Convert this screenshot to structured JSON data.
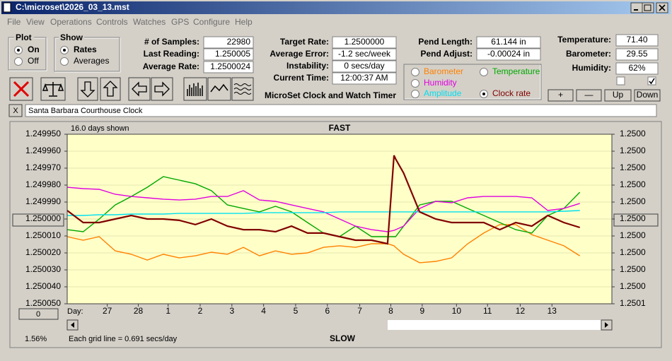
{
  "window": {
    "title": "C:\\microset\\2026_03_13.mst"
  },
  "menu": [
    "File",
    "View",
    "Operations",
    "Controls",
    "Watches",
    "GPS",
    "Configure",
    "Help"
  ],
  "plot_group": {
    "title": "Plot",
    "options": [
      "On",
      "Off"
    ],
    "selected": 0
  },
  "show_group": {
    "title": "Show",
    "options": [
      "Rates",
      "Averages"
    ],
    "selected": 0
  },
  "stats": {
    "left": [
      {
        "label": "# of Samples:",
        "value": "22980"
      },
      {
        "label": "Last Reading:",
        "value": "1.250005"
      },
      {
        "label": "Average Rate:",
        "value": "1.2500024"
      }
    ],
    "middle": [
      {
        "label": "Target Rate:",
        "value": "1.2500000"
      },
      {
        "label": "Average Error:",
        "value": "-1.2 sec/week"
      },
      {
        "label": "Instability:",
        "value": "0 secs/day"
      },
      {
        "label": "Current Time:",
        "value": "12:00:37 AM"
      }
    ],
    "pend": [
      {
        "label": "Pend Length:",
        "value": "61.144 in"
      },
      {
        "label": "Pend Adjust:",
        "value": "-0.00024 in"
      }
    ],
    "environment": [
      {
        "label": "Temperature:",
        "value": "71.40"
      },
      {
        "label": "Barometer:",
        "value": "29.55"
      },
      {
        "label": "Humidity:",
        "value": "62%"
      }
    ]
  },
  "checkboxes": [
    false,
    true
  ],
  "env_buttons": [
    "+",
    "—",
    "Up",
    "Down"
  ],
  "app_title": "MicroSet Clock and Watch Timer",
  "clock": {
    "close": "X",
    "name": "Santa Barbara Courthouse Clock"
  },
  "chart_data": {
    "type": "line",
    "top_label": "FAST",
    "bottom_label": "SLOW",
    "days_shown": "16.0 days shown",
    "grid_note": "Each grid line = 0.691 secs/day",
    "percent": "1.56%",
    "offset_button": "0",
    "x_label": "Day:",
    "y_reversed": true,
    "grid": true,
    "selected_series": 4,
    "x": [
      0,
      0.5,
      1,
      1.5,
      2,
      2.5,
      3,
      3.5,
      4,
      4.5,
      5,
      5.5,
      6,
      6.5,
      7,
      7.5,
      8,
      8.5,
      9,
      9.5,
      10,
      10.2,
      10.25,
      10.5,
      11,
      11.5,
      12,
      12.5,
      13,
      13.5,
      14,
      14.5,
      15,
      15.5,
      16
    ],
    "xlim": [
      0,
      17
    ],
    "xticks": [
      {
        "value": 1.25,
        "label": "27"
      },
      {
        "value": 2.22,
        "label": "28"
      },
      {
        "value": 3.15,
        "label": "1"
      },
      {
        "value": 4.15,
        "label": "2"
      },
      {
        "value": 5.14,
        "label": "3"
      },
      {
        "value": 6.13,
        "label": "4"
      },
      {
        "value": 7.13,
        "label": "5"
      },
      {
        "value": 8.12,
        "label": "6"
      },
      {
        "value": 9.13,
        "label": "7"
      },
      {
        "value": 10.1,
        "label": "8"
      },
      {
        "value": 11.08,
        "label": "9"
      },
      {
        "value": 12.15,
        "label": "10"
      },
      {
        "value": 13.12,
        "label": "11"
      },
      {
        "value": 14.14,
        "label": "12"
      },
      {
        "value": 15.13,
        "label": "13"
      }
    ],
    "ylim": [
      1.24995,
      1.25005
    ],
    "yticks": [
      {
        "value": 1.24995,
        "label": "1.249950"
      },
      {
        "value": 1.24996,
        "label": "1.249960"
      },
      {
        "value": 1.24997,
        "label": "1.249970"
      },
      {
        "value": 1.24998,
        "label": "1.249980"
      },
      {
        "value": 1.24999,
        "label": "1.249990"
      },
      {
        "value": 1.25,
        "label": "1.250000"
      },
      {
        "value": 1.25001,
        "label": "1.250010"
      },
      {
        "value": 1.25002,
        "label": "1.250020"
      },
      {
        "value": 1.25003,
        "label": "1.250030"
      },
      {
        "value": 1.25004,
        "label": "1.250040"
      },
      {
        "value": 1.25005,
        "label": "1.250050"
      }
    ],
    "y2lim": [
      1.24995,
      1.25005
    ],
    "y2ticks": [
      {
        "value": 1.24995,
        "label": "1.2500"
      },
      {
        "value": 1.24996,
        "label": "1.2500"
      },
      {
        "value": 1.24997,
        "label": "1.2500"
      },
      {
        "value": 1.24998,
        "label": "1.2500"
      },
      {
        "value": 1.24999,
        "label": "1.2500"
      },
      {
        "value": 1.25,
        "label": "1.2500"
      },
      {
        "value": 1.25001,
        "label": "1.2500"
      },
      {
        "value": 1.25002,
        "label": "1.2500"
      },
      {
        "value": 1.25003,
        "label": "1.2500"
      },
      {
        "value": 1.25004,
        "label": "1.2500"
      },
      {
        "value": 1.25005,
        "label": "1.2501"
      }
    ],
    "series": [
      {
        "name": "Barometer",
        "color": "#ff8000",
        "values": [
          1.2500104,
          1.2500125,
          1.2500104,
          1.2500188,
          1.2500208,
          1.2500242,
          1.2500208,
          1.2500229,
          1.2500217,
          1.2500196,
          1.2500208,
          1.2500167,
          1.2500217,
          1.2500188,
          1.2500208,
          1.25002,
          1.2500167,
          1.2500158,
          1.2500167,
          1.2500146,
          1.2500146,
          1.2500158,
          1.2500167,
          1.2500208,
          1.2500258,
          1.250025,
          1.2500229,
          1.2500146,
          1.2500083,
          1.2500033,
          1.2500033,
          1.2500092,
          1.2500125,
          1.2500158,
          1.2500217
        ]
      },
      {
        "name": "Temperature",
        "color": "#00a800",
        "values": [
          1.2500063,
          1.2500075,
          1.25,
          1.2499917,
          1.2499867,
          1.2499813,
          1.249975,
          1.2499771,
          1.2499792,
          1.2499833,
          1.2499917,
          1.2499938,
          1.2499958,
          1.2499925,
          1.2499958,
          1.2500021,
          1.2500083,
          1.2500104,
          1.2500042,
          1.2500104,
          1.2500104,
          1.2500104,
          1.2500104,
          1.2500042,
          1.2499917,
          1.2499896,
          1.2499896,
          1.2499938,
          1.2499979,
          1.2500021,
          1.2500063,
          1.2500083,
          1.2499979,
          1.2499938,
          1.2499842
        ]
      },
      {
        "name": "Humidity",
        "color": "#e000e0",
        "values": [
          1.2499813,
          1.2499821,
          1.2499825,
          1.2499854,
          1.2499867,
          1.2499875,
          1.2499883,
          1.2499888,
          1.2499883,
          1.2499867,
          1.2499867,
          1.2499833,
          1.2499888,
          1.2499896,
          1.2499917,
          1.2499938,
          1.2499958,
          1.25,
          1.2500042,
          1.2500063,
          1.2500075,
          1.2500067,
          1.2500063,
          1.2500042,
          1.2499938,
          1.2499896,
          1.2499904,
          1.2499875,
          1.2499867,
          1.2499867,
          1.2499867,
          1.2499875,
          1.249995,
          1.2499938,
          1.2499908
        ]
      },
      {
        "name": "Amplitude",
        "color": "#00e0f0",
        "values": [
          1.2499979,
          1.2499979,
          1.2499975,
          1.2499975,
          1.2499971,
          1.2499971,
          1.2499971,
          1.2499967,
          1.2499967,
          1.2499967,
          1.2499967,
          1.2499967,
          1.2499963,
          1.2499963,
          1.2499963,
          1.2499963,
          1.2499963,
          1.2499958,
          1.2499958,
          1.2499958,
          1.2499958,
          1.2499958,
          1.2499958,
          1.2499958,
          1.2499958,
          1.2499958,
          1.2499958,
          1.2499958,
          1.2499958,
          1.2499958,
          1.2499958,
          1.2499958,
          1.2499958,
          1.2499954,
          1.249995
        ]
      },
      {
        "name": "Clock rate",
        "color": "#800000",
        "values": [
          1.249995,
          1.2500021,
          1.2500021,
          1.25,
          1.2499979,
          1.25,
          1.25,
          1.2500008,
          1.2500033,
          1.25,
          1.2500042,
          1.2500063,
          1.2500063,
          1.2500075,
          1.2500042,
          1.2500083,
          1.2500083,
          1.2500104,
          1.2500125,
          1.2500125,
          1.2500146,
          1.2499625,
          1.2499646,
          1.2499729,
          1.2499958,
          1.25,
          1.2500021,
          1.2500021,
          1.2500021,
          1.2500063,
          1.2500021,
          1.2500042,
          1.2499979,
          1.2500021,
          1.250005
        ]
      }
    ]
  }
}
